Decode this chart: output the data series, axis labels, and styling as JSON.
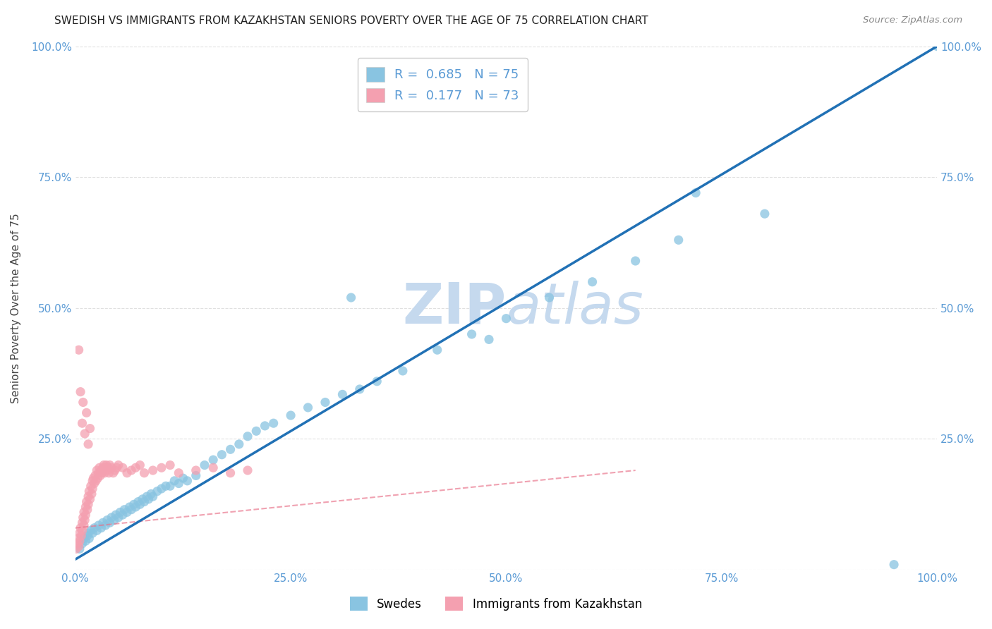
{
  "title": "SWEDISH VS IMMIGRANTS FROM KAZAKHSTAN SENIORS POVERTY OVER THE AGE OF 75 CORRELATION CHART",
  "source": "Source: ZipAtlas.com",
  "ylabel": "Seniors Poverty Over the Age of 75",
  "blue_color": "#89c4e1",
  "pink_color": "#f4a0b0",
  "blue_line_color": "#2171b5",
  "pink_line_color": "#e87088",
  "legend_R_blue": "0.685",
  "legend_N_blue": "75",
  "legend_R_pink": "0.177",
  "legend_N_pink": "73",
  "watermark": "ZIPatlas",
  "watermark_color": "#c5d9ee",
  "background_color": "#ffffff",
  "grid_color": "#e0e0e0",
  "tick_color": "#5b9bd5",
  "blue_scatter_x": [
    0.005,
    0.008,
    0.01,
    0.012,
    0.014,
    0.015,
    0.016,
    0.018,
    0.02,
    0.022,
    0.025,
    0.027,
    0.03,
    0.032,
    0.035,
    0.037,
    0.04,
    0.042,
    0.045,
    0.047,
    0.05,
    0.052,
    0.055,
    0.057,
    0.06,
    0.063,
    0.065,
    0.068,
    0.07,
    0.073,
    0.075,
    0.078,
    0.08,
    0.083,
    0.085,
    0.088,
    0.09,
    0.095,
    0.1,
    0.105,
    0.11,
    0.115,
    0.12,
    0.125,
    0.13,
    0.14,
    0.15,
    0.16,
    0.17,
    0.18,
    0.19,
    0.2,
    0.21,
    0.22,
    0.23,
    0.25,
    0.27,
    0.29,
    0.31,
    0.33,
    0.35,
    0.38,
    0.42,
    0.46,
    0.5,
    0.55,
    0.6,
    0.65,
    0.7,
    0.8,
    0.32,
    0.48,
    0.72,
    0.95,
    1.0
  ],
  "blue_scatter_y": [
    0.04,
    0.05,
    0.06,
    0.055,
    0.065,
    0.07,
    0.06,
    0.075,
    0.07,
    0.08,
    0.075,
    0.085,
    0.08,
    0.09,
    0.085,
    0.095,
    0.09,
    0.1,
    0.095,
    0.105,
    0.1,
    0.11,
    0.105,
    0.115,
    0.11,
    0.12,
    0.115,
    0.125,
    0.12,
    0.13,
    0.125,
    0.135,
    0.13,
    0.14,
    0.135,
    0.145,
    0.14,
    0.15,
    0.155,
    0.16,
    0.16,
    0.17,
    0.165,
    0.175,
    0.17,
    0.18,
    0.2,
    0.21,
    0.22,
    0.23,
    0.24,
    0.255,
    0.265,
    0.275,
    0.28,
    0.295,
    0.31,
    0.32,
    0.335,
    0.345,
    0.36,
    0.38,
    0.42,
    0.45,
    0.48,
    0.52,
    0.55,
    0.59,
    0.63,
    0.68,
    0.52,
    0.44,
    0.72,
    0.01,
    1.0
  ],
  "pink_scatter_x": [
    0.001,
    0.002,
    0.003,
    0.004,
    0.005,
    0.005,
    0.006,
    0.007,
    0.008,
    0.008,
    0.009,
    0.01,
    0.01,
    0.011,
    0.012,
    0.012,
    0.013,
    0.014,
    0.015,
    0.015,
    0.016,
    0.017,
    0.018,
    0.019,
    0.02,
    0.02,
    0.021,
    0.022,
    0.023,
    0.024,
    0.025,
    0.026,
    0.027,
    0.028,
    0.029,
    0.03,
    0.031,
    0.032,
    0.033,
    0.034,
    0.035,
    0.036,
    0.037,
    0.038,
    0.039,
    0.04,
    0.042,
    0.044,
    0.046,
    0.048,
    0.05,
    0.055,
    0.06,
    0.065,
    0.07,
    0.075,
    0.08,
    0.09,
    0.1,
    0.11,
    0.12,
    0.14,
    0.16,
    0.18,
    0.2,
    0.004,
    0.006,
    0.008,
    0.009,
    0.011,
    0.013,
    0.015,
    0.017
  ],
  "pink_scatter_y": [
    0.04,
    0.05,
    0.06,
    0.045,
    0.07,
    0.055,
    0.08,
    0.065,
    0.09,
    0.075,
    0.1,
    0.085,
    0.11,
    0.095,
    0.12,
    0.105,
    0.13,
    0.115,
    0.14,
    0.125,
    0.15,
    0.135,
    0.16,
    0.145,
    0.17,
    0.155,
    0.175,
    0.165,
    0.18,
    0.17,
    0.19,
    0.175,
    0.185,
    0.195,
    0.18,
    0.19,
    0.185,
    0.195,
    0.2,
    0.185,
    0.195,
    0.2,
    0.19,
    0.195,
    0.185,
    0.2,
    0.195,
    0.185,
    0.19,
    0.195,
    0.2,
    0.195,
    0.185,
    0.19,
    0.195,
    0.2,
    0.185,
    0.19,
    0.195,
    0.2,
    0.185,
    0.19,
    0.195,
    0.185,
    0.19,
    0.42,
    0.34,
    0.28,
    0.32,
    0.26,
    0.3,
    0.24,
    0.27
  ]
}
